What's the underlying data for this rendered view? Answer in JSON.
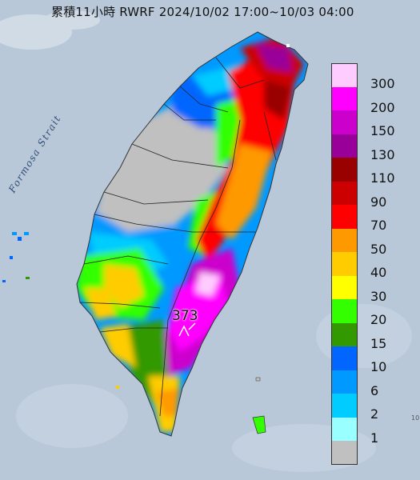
{
  "title": "累積11小時 RWRF 2024/10/02 17:00~10/03 04:00",
  "strait_label": "Formosa Strait",
  "max_value_label": "373",
  "corner_text": "10",
  "legend": {
    "bins": [
      {
        "label": "300",
        "color": "#ffccff"
      },
      {
        "label": "200",
        "color": "#ff00ff"
      },
      {
        "label": "150",
        "color": "#cc00cc"
      },
      {
        "label": "130",
        "color": "#990099"
      },
      {
        "label": "110",
        "color": "#990000"
      },
      {
        "label": "90",
        "color": "#cc0000"
      },
      {
        "label": "70",
        "color": "#ff0000"
      },
      {
        "label": "50",
        "color": "#ff9900"
      },
      {
        "label": "40",
        "color": "#ffcc00"
      },
      {
        "label": "30",
        "color": "#ffff00"
      },
      {
        "label": "20",
        "color": "#33ff00"
      },
      {
        "label": "15",
        "color": "#339900"
      },
      {
        "label": "10",
        "color": "#0066ff"
      },
      {
        "label": "6",
        "color": "#0099ff"
      },
      {
        "label": "2",
        "color": "#00ccff"
      },
      {
        "label": "1",
        "color": "#99ffff"
      },
      {
        "label": "",
        "color": "#c0c0c0"
      }
    ]
  },
  "colors": {
    "sea": "#b9c8d9",
    "no_rain": "#c0c0c0",
    "boundary": "#222222"
  }
}
